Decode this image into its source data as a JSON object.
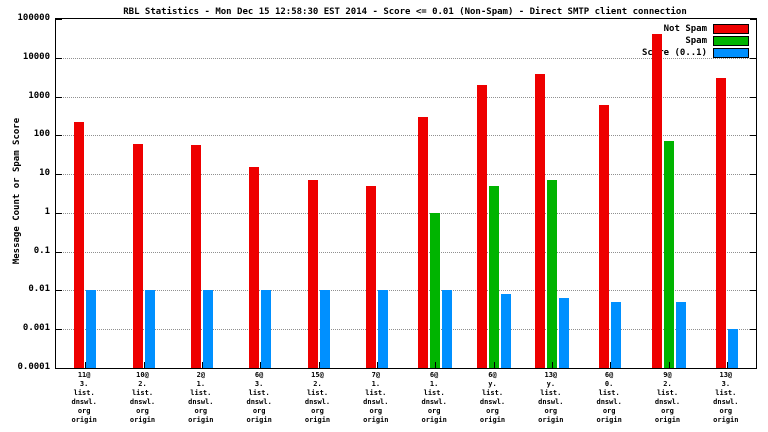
{
  "chart_data": {
    "type": "bar",
    "scale": "log",
    "title": "RBL Statistics - Mon Dec 15 12:58:30 EST 2014 - Score <= 0.01 (Non-Spam) - Direct SMTP client connection",
    "ylabel": "Message Count or Spam Score",
    "xlabel": "",
    "ylim": [
      0.0001,
      100000
    ],
    "yticks": [
      "100000",
      "10000",
      "1000",
      "100",
      "10",
      "1",
      "0.1",
      "0.01",
      "0.001",
      "0.0001"
    ],
    "grid": "horizontal-dotted",
    "legend_position": "top-right",
    "categories": [
      [
        "11@",
        "3.",
        "list.",
        "dnswl.",
        "org",
        "origin"
      ],
      [
        "10@",
        "2.",
        "list.",
        "dnswl.",
        "org",
        "origin"
      ],
      [
        "2@",
        "1.",
        "list.",
        "dnswl.",
        "org",
        "origin"
      ],
      [
        "6@",
        "3.",
        "list.",
        "dnswl.",
        "org",
        "origin"
      ],
      [
        "15@",
        "2.",
        "list.",
        "dnswl.",
        "org",
        "origin"
      ],
      [
        "7@",
        "1.",
        "list.",
        "dnswl.",
        "org",
        "origin"
      ],
      [
        "6@",
        "1.",
        "list.",
        "dnswl.",
        "org",
        "origin"
      ],
      [
        "6@",
        "y.",
        "list.",
        "dnswl.",
        "org",
        "origin"
      ],
      [
        "13@",
        "y.",
        "list.",
        "dnswl.",
        "org",
        "origin"
      ],
      [
        "6@",
        "0.",
        "list.",
        "dnswl.",
        "org",
        "origin"
      ],
      [
        "9@",
        "2.",
        "list.",
        "dnswl.",
        "org",
        "origin"
      ],
      [
        "13@",
        "3.",
        "list.",
        "dnswl.",
        "org",
        "origin"
      ]
    ],
    "series": [
      {
        "name": "Not Spam",
        "color": "#ee0000",
        "values": [
          220,
          60,
          55,
          15,
          7,
          5,
          300,
          2000,
          3800,
          600,
          40000,
          3000
        ]
      },
      {
        "name": "Spam",
        "color": "#00b400",
        "values": [
          null,
          null,
          null,
          null,
          null,
          null,
          1,
          5,
          7,
          null,
          70,
          null
        ]
      },
      {
        "name": "Score (0..1)",
        "color": "#0090ff",
        "values": [
          0.01,
          0.01,
          0.01,
          0.01,
          0.01,
          0.01,
          0.01,
          0.008,
          0.0065,
          0.005,
          0.005,
          0.001
        ]
      }
    ]
  }
}
